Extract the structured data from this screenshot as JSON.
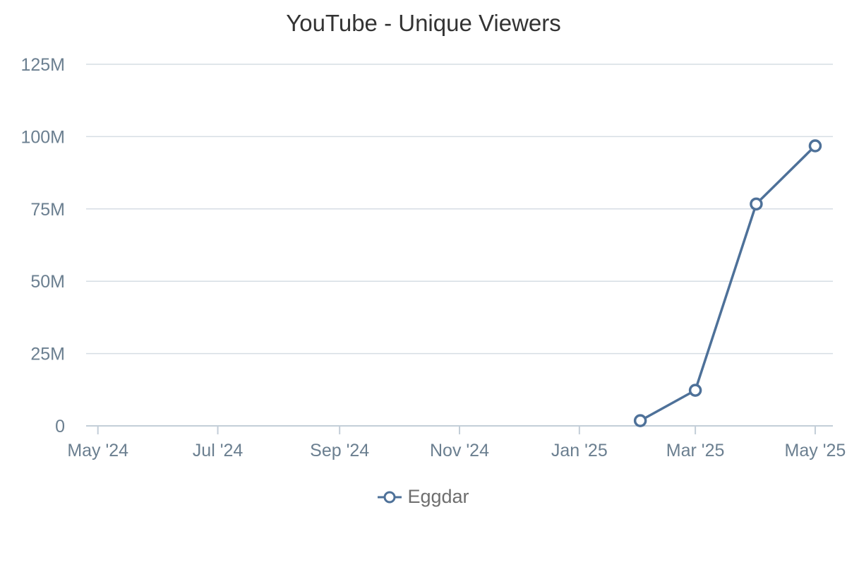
{
  "chart_data": {
    "type": "line",
    "title": "YouTube - Unique Viewers",
    "xlabel": "",
    "ylabel": "",
    "x_axis_type": "datetime",
    "xlim": [
      "2024-04-25",
      "2025-05-10"
    ],
    "ylim": [
      0,
      125000000
    ],
    "y_ticks": [
      0,
      25000000,
      50000000,
      75000000,
      100000000,
      125000000
    ],
    "y_tick_labels": [
      "0",
      "25M",
      "50M",
      "75M",
      "100M",
      "125M"
    ],
    "x_ticks": [
      "2024-05-01",
      "2024-07-01",
      "2024-09-01",
      "2024-11-01",
      "2025-01-01",
      "2025-03-01",
      "2025-05-01"
    ],
    "x_tick_labels": [
      "May '24",
      "Jul '24",
      "Sep '24",
      "Nov '24",
      "Jan '25",
      "Mar '25",
      "May '25"
    ],
    "grid": true,
    "legend_position": "bottom-center",
    "series": [
      {
        "name": "Eggdar",
        "color": "#4e7199",
        "x": [
          "2025-02-01",
          "2025-03-01",
          "2025-04-01",
          "2025-05-01"
        ],
        "values": [
          1800000,
          12300000,
          76700000,
          96800000
        ]
      }
    ]
  }
}
